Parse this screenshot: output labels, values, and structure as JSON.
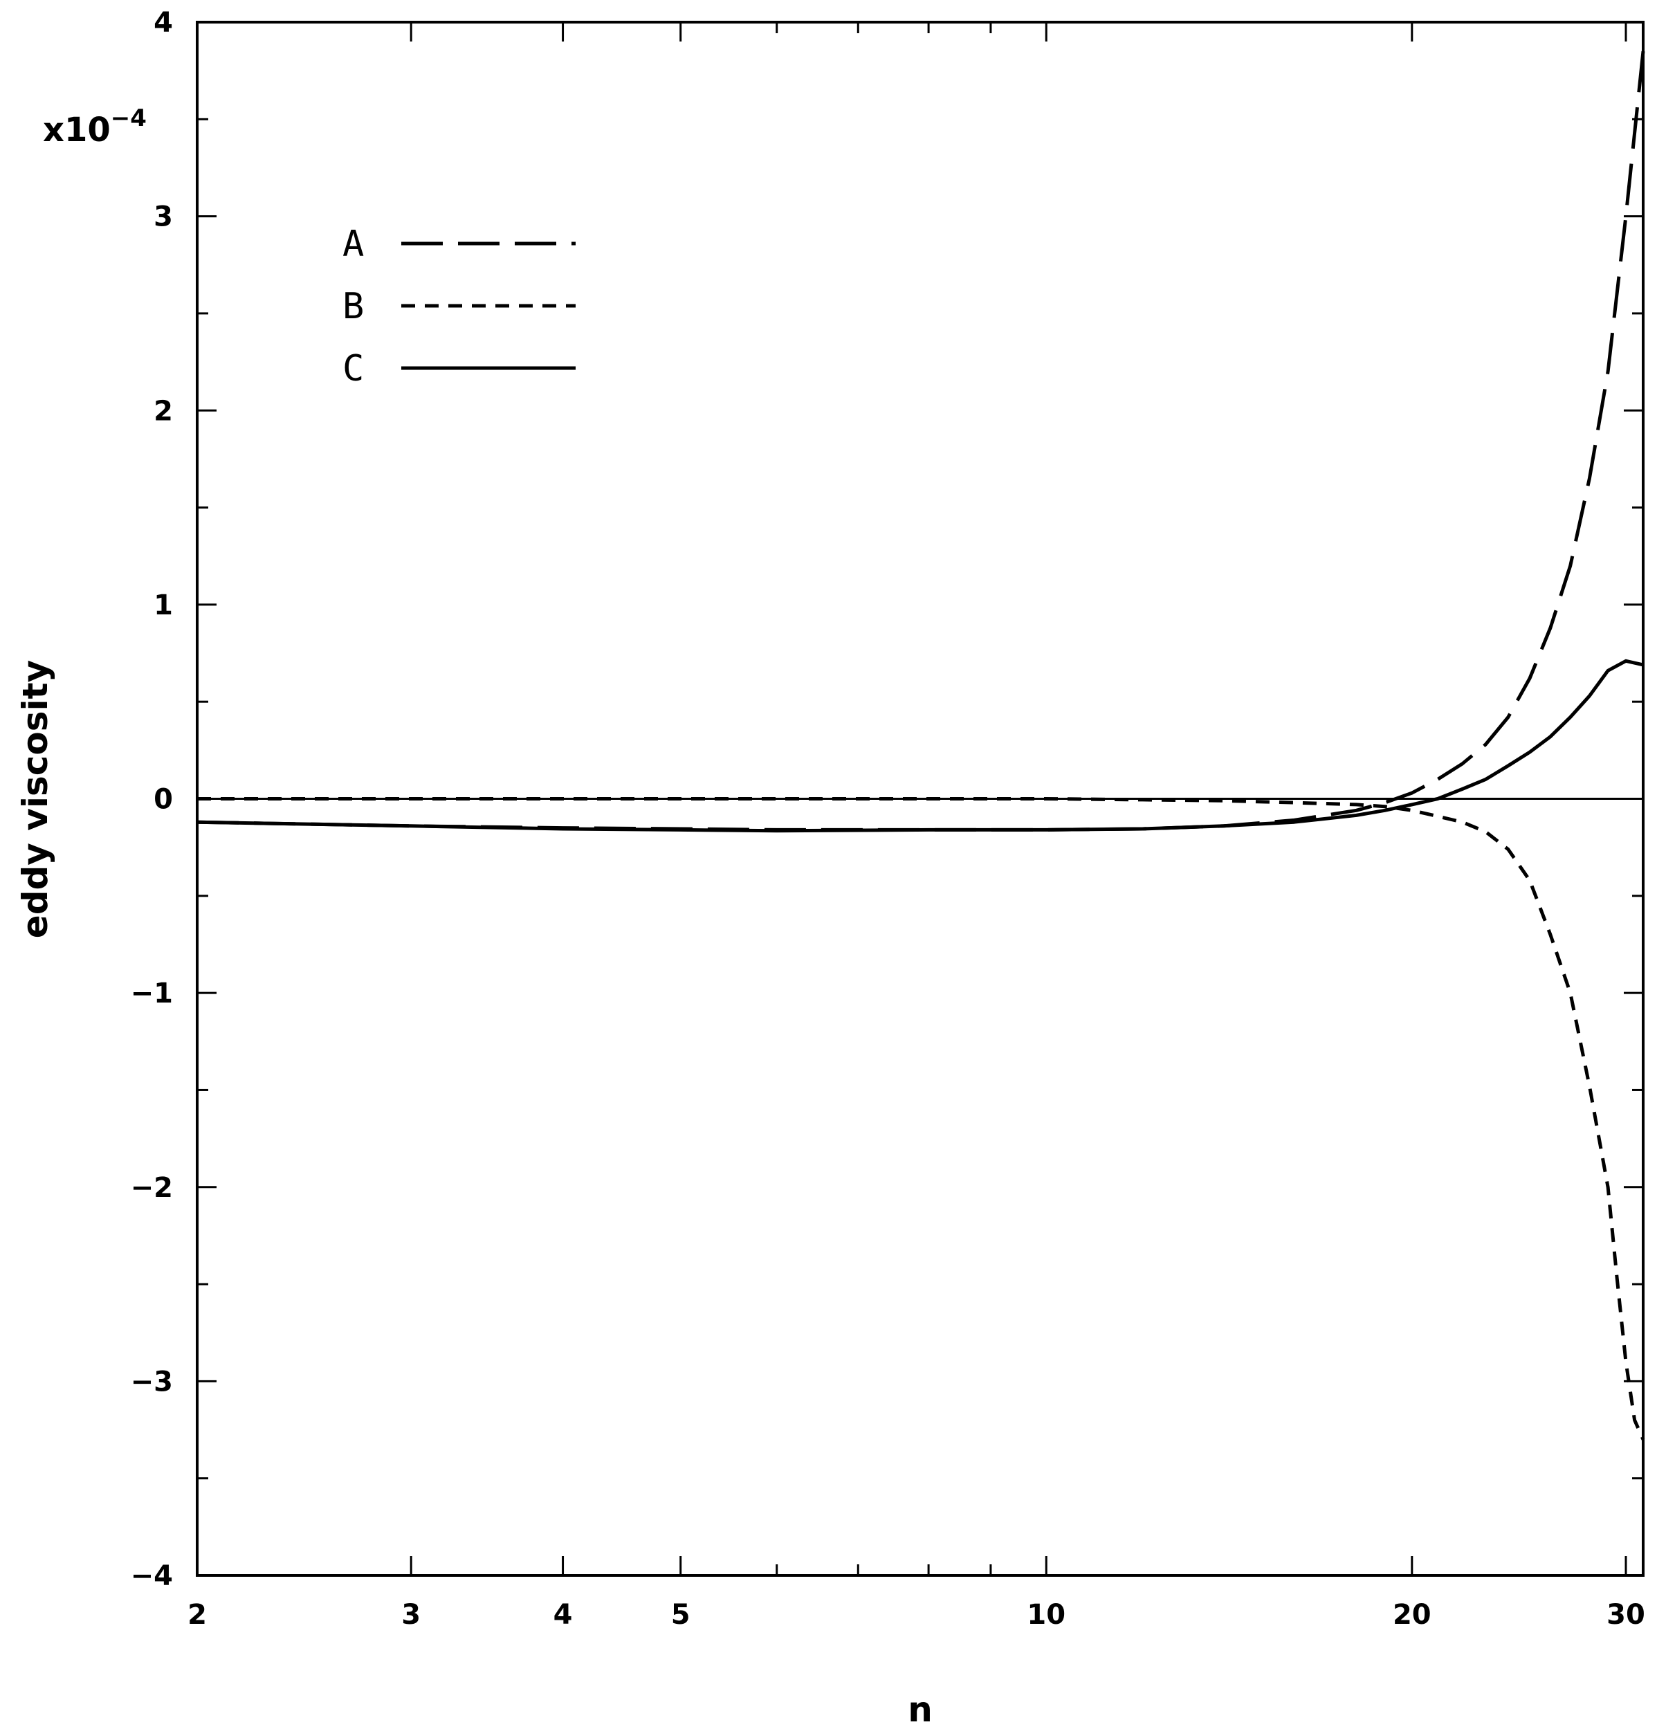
{
  "chart_data": {
    "type": "line",
    "xlabel": "n",
    "ylabel": "eddy viscosity",
    "x_scale": "log",
    "xlim": [
      2,
      31
    ],
    "ylim": [
      -4,
      4
    ],
    "y_multiplier": {
      "base": "x10",
      "exponent": "−4"
    },
    "x_ticks": [
      {
        "value": 2,
        "label": "2"
      },
      {
        "value": 3,
        "label": "3"
      },
      {
        "value": 4,
        "label": "4"
      },
      {
        "value": 5,
        "label": "5"
      },
      {
        "value": 10,
        "label": "10"
      },
      {
        "value": 20,
        "label": "20"
      },
      {
        "value": 30,
        "label": "30"
      }
    ],
    "x_minor_ticks": [
      6,
      7,
      8,
      9
    ],
    "y_ticks": [
      {
        "value": -4,
        "label": "−4"
      },
      {
        "value": -3,
        "label": "−3"
      },
      {
        "value": -2,
        "label": "−2"
      },
      {
        "value": -1,
        "label": "−1"
      },
      {
        "value": 0,
        "label": "0"
      },
      {
        "value": 1,
        "label": "1"
      },
      {
        "value": 2,
        "label": "2"
      },
      {
        "value": 3,
        "label": "3"
      },
      {
        "value": 4,
        "label": "4"
      }
    ],
    "y_minor_ticks": [
      -3.5,
      -2.5,
      -1.5,
      -0.5,
      0.5,
      1.5,
      2.5,
      3.5
    ],
    "zero_line": true,
    "grid": false,
    "legend_position": "top-left",
    "series": [
      {
        "name": "A",
        "style": "long-dash",
        "x": [
          2,
          3,
          4,
          5,
          6,
          8,
          10,
          12,
          14,
          16,
          18,
          19,
          20,
          21,
          22,
          23,
          24,
          25,
          26,
          27,
          28,
          29,
          30,
          31
        ],
        "y": [
          -0.12,
          -0.14,
          -0.15,
          -0.155,
          -0.16,
          -0.16,
          -0.16,
          -0.155,
          -0.14,
          -0.11,
          -0.06,
          -0.02,
          0.03,
          0.1,
          0.18,
          0.28,
          0.42,
          0.62,
          0.88,
          1.2,
          1.65,
          2.2,
          3.0,
          3.85
        ]
      },
      {
        "name": "B",
        "style": "short-dash",
        "x": [
          2,
          4,
          6,
          8,
          10,
          12,
          14,
          16,
          18,
          19,
          20,
          21,
          22,
          23,
          24,
          25,
          26,
          27,
          28,
          29,
          29.5,
          30,
          30.5,
          31
        ],
        "y": [
          0,
          0,
          0,
          0,
          0,
          -0.005,
          -0.01,
          -0.02,
          -0.03,
          -0.04,
          -0.06,
          -0.09,
          -0.12,
          -0.17,
          -0.26,
          -0.42,
          -0.7,
          -1.0,
          -1.48,
          -2.0,
          -2.47,
          -2.9,
          -3.2,
          -3.3
        ]
      },
      {
        "name": "C",
        "style": "solid",
        "x": [
          2,
          3,
          4,
          5,
          6,
          8,
          10,
          12,
          14,
          16,
          18,
          19,
          20,
          21,
          22,
          23,
          24,
          25,
          26,
          27,
          28,
          29,
          30,
          31
        ],
        "y": [
          -0.12,
          -0.14,
          -0.155,
          -0.16,
          -0.165,
          -0.16,
          -0.16,
          -0.155,
          -0.14,
          -0.12,
          -0.085,
          -0.06,
          -0.03,
          0.0,
          0.05,
          0.1,
          0.17,
          0.24,
          0.32,
          0.42,
          0.53,
          0.66,
          0.71,
          0.69
        ]
      }
    ]
  }
}
